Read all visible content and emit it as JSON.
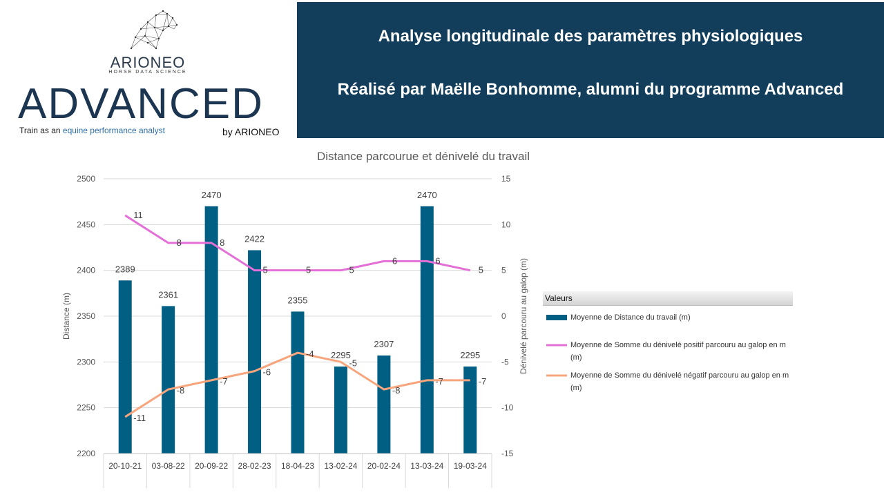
{
  "logo": {
    "brand": "ARIONEO",
    "brand_tagline": "HORSE DATA SCIENCE",
    "program": "ADVANCED",
    "tagline_prefix": "Train as an ",
    "tagline_highlight": "equine performance analyst",
    "by": "by ARIONEO"
  },
  "banner": {
    "title": "Analyse longitudinale des paramètres physiologiques",
    "subtitle": "Réalisé par Maëlle Bonhomme, alumni du programme Advanced",
    "background": "#123d5b"
  },
  "chart_data": {
    "type": "bar",
    "title": "Distance parcourue et dénivelé du travail",
    "categories": [
      "20-10-21",
      "03-08-22",
      "20-09-22",
      "28-02-23",
      "18-04-23",
      "13-02-24",
      "20-02-24",
      "13-03-24",
      "19-03-24"
    ],
    "ylabel": "Distance (m)",
    "y2label": "Dénivelé parcouru au galop (m)",
    "ylim": [
      2200,
      2500
    ],
    "yticks": [
      2200,
      2250,
      2300,
      2350,
      2400,
      2450,
      2500
    ],
    "y2lim": [
      -15,
      15
    ],
    "y2ticks": [
      -15,
      -10,
      -5,
      0,
      5,
      10,
      15
    ],
    "grid": true,
    "legend_placement": "right",
    "legend_title": "Valeurs",
    "series": [
      {
        "name": "Moyenne de Distance du travail (m)",
        "type": "bar",
        "axis": "left",
        "color": "#005f83",
        "values": [
          2389,
          2361,
          2470,
          2422,
          2355,
          2295,
          2307,
          2470,
          2295
        ]
      },
      {
        "name": "Moyenne de Somme du dénivelé positif parcouru au galop en m (m)",
        "type": "line",
        "axis": "right",
        "color": "#e36fd7",
        "values": [
          11,
          8,
          8,
          5,
          5,
          5,
          6,
          6,
          5
        ]
      },
      {
        "name": "Moyenne de Somme du dénivelé négatif parcouru au galop en m (m)",
        "type": "line",
        "axis": "right",
        "color": "#f7a57d",
        "values": [
          -11,
          -8,
          -7,
          -6,
          -4,
          -5,
          -8,
          -7,
          -7
        ]
      }
    ]
  }
}
